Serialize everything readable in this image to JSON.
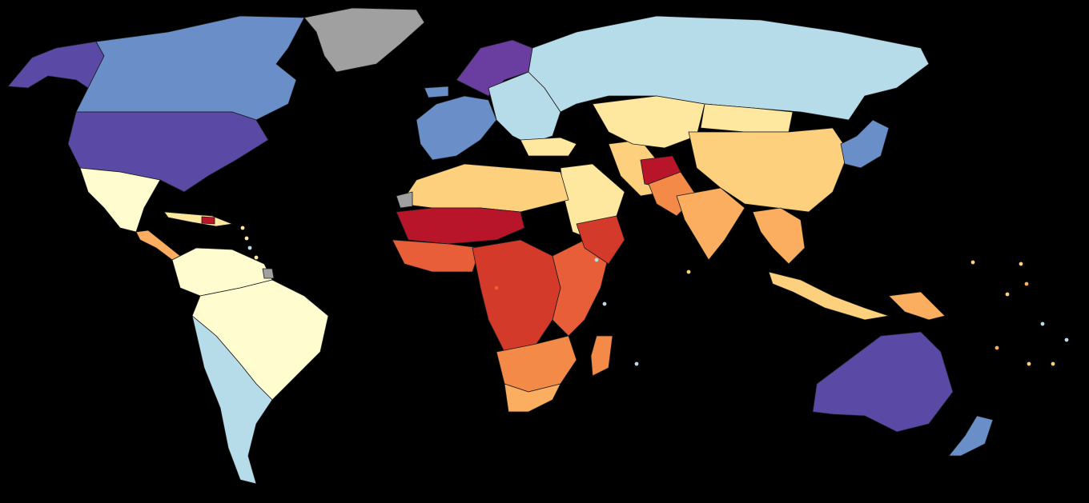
{
  "map": {
    "background": "#000000",
    "border_color": "#1a1a1a",
    "scale_colors": {
      "very_high": "#5a4aa6",
      "high_purple": "#6a3ea0",
      "high": "#6a8fc8",
      "upper_mid": "#b6dcea",
      "mid_light": "#fffcd0",
      "mid": "#fee8a0",
      "mid_yellow": "#fdd07e",
      "lower_mid": "#fbae5f",
      "low_orange": "#f38a48",
      "low": "#e85e38",
      "very_low": "#d33a2a",
      "lowest": "#b8142a",
      "no_data": "#a0a0a0"
    },
    "regions": [
      {
        "name": "alaska",
        "level": "very_high"
      },
      {
        "name": "canada",
        "level": "high"
      },
      {
        "name": "greenland",
        "level": "no_data"
      },
      {
        "name": "usa",
        "level": "very_high"
      },
      {
        "name": "mexico",
        "level": "mid_light"
      },
      {
        "name": "central-america",
        "level": "lower_mid"
      },
      {
        "name": "caribbean",
        "level": "mid"
      },
      {
        "name": "haiti",
        "level": "lowest"
      },
      {
        "name": "south-america-north",
        "level": "mid_light"
      },
      {
        "name": "brazil",
        "level": "mid_light"
      },
      {
        "name": "southern-cone",
        "level": "upper_mid"
      },
      {
        "name": "guiana",
        "level": "no_data"
      },
      {
        "name": "iceland",
        "level": "high"
      },
      {
        "name": "scandinavia",
        "level": "high_purple"
      },
      {
        "name": "western-europe",
        "level": "high"
      },
      {
        "name": "eastern-europe",
        "level": "upper_mid"
      },
      {
        "name": "russia",
        "level": "upper_mid"
      },
      {
        "name": "turkey",
        "level": "mid"
      },
      {
        "name": "middle-east",
        "level": "mid"
      },
      {
        "name": "iran",
        "level": "mid_yellow"
      },
      {
        "name": "afghanistan",
        "level": "lowest"
      },
      {
        "name": "pakistan",
        "level": "low_orange"
      },
      {
        "name": "india",
        "level": "lower_mid"
      },
      {
        "name": "central-asia",
        "level": "mid"
      },
      {
        "name": "mongolia",
        "level": "mid"
      },
      {
        "name": "china",
        "level": "mid_yellow"
      },
      {
        "name": "japan-korea",
        "level": "high"
      },
      {
        "name": "southeast-asia",
        "level": "lower_mid"
      },
      {
        "name": "indonesia",
        "level": "mid_yellow"
      },
      {
        "name": "papua",
        "level": "lower_mid"
      },
      {
        "name": "australia",
        "level": "very_high"
      },
      {
        "name": "new-zealand",
        "level": "high"
      },
      {
        "name": "north-africa",
        "level": "mid_yellow"
      },
      {
        "name": "western-sahara",
        "level": "no_data"
      },
      {
        "name": "sahel",
        "level": "lowest"
      },
      {
        "name": "west-africa",
        "level": "low"
      },
      {
        "name": "central-africa",
        "level": "very_low"
      },
      {
        "name": "east-africa",
        "level": "low"
      },
      {
        "name": "horn-of-africa",
        "level": "very_low"
      },
      {
        "name": "southern-africa",
        "level": "low_orange"
      },
      {
        "name": "south-africa",
        "level": "lower_mid"
      },
      {
        "name": "madagascar",
        "level": "low_orange"
      }
    ]
  }
}
